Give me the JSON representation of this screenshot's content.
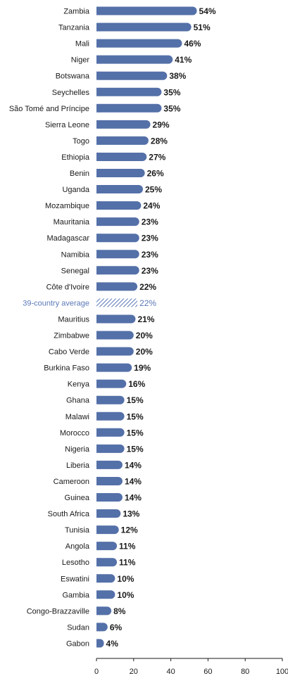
{
  "chart_data": {
    "type": "bar",
    "orientation": "horizontal",
    "categories": [
      "Zambia",
      "Tanzania",
      "Mali",
      "Niger",
      "Botswana",
      "Seychelles",
      "São Tomé and Príncipe",
      "Sierra Leone",
      "Togo",
      "Ethiopia",
      "Benin",
      "Uganda",
      "Mozambique",
      "Mauritania",
      "Madagascar",
      "Namibia",
      "Senegal",
      "Côte d'Ivoire",
      "39-country average",
      "Mauritius",
      "Zimbabwe",
      "Cabo Verde",
      "Burkina Faso",
      "Kenya",
      "Ghana",
      "Malawi",
      "Morocco",
      "Nigeria",
      "Liberia",
      "Cameroon",
      "Guinea",
      "South Africa",
      "Tunisia",
      "Angola",
      "Lesotho",
      "Eswatini",
      "Gambia",
      "Congo-Brazzaville",
      "Sudan",
      "Gabon"
    ],
    "values": [
      54,
      51,
      46,
      41,
      38,
      35,
      35,
      29,
      28,
      27,
      26,
      25,
      24,
      23,
      23,
      23,
      23,
      22,
      22,
      21,
      20,
      20,
      19,
      16,
      15,
      15,
      15,
      15,
      14,
      14,
      14,
      13,
      12,
      11,
      11,
      10,
      10,
      8,
      6,
      4
    ],
    "value_labels": [
      "54%",
      "51%",
      "46%",
      "41%",
      "38%",
      "35%",
      "35%",
      "29%",
      "28%",
      "27%",
      "26%",
      "25%",
      "24%",
      "23%",
      "23%",
      "23%",
      "23%",
      "22%",
      "22%",
      "21%",
      "20%",
      "20%",
      "19%",
      "16%",
      "15%",
      "15%",
      "15%",
      "15%",
      "14%",
      "14%",
      "14%",
      "13%",
      "12%",
      "11%",
      "11%",
      "10%",
      "10%",
      "8%",
      "6%",
      "4%"
    ],
    "highlight_category": "39-country average",
    "xlim": [
      0,
      100
    ],
    "x_ticks": [
      "0",
      "20",
      "40",
      "60",
      "80",
      "100"
    ],
    "title": "",
    "xlabel": "",
    "ylabel": "",
    "grid": false,
    "colors": {
      "bar": "#5470a8",
      "average": "#5a78b8",
      "text": "#1a1a1a"
    }
  }
}
